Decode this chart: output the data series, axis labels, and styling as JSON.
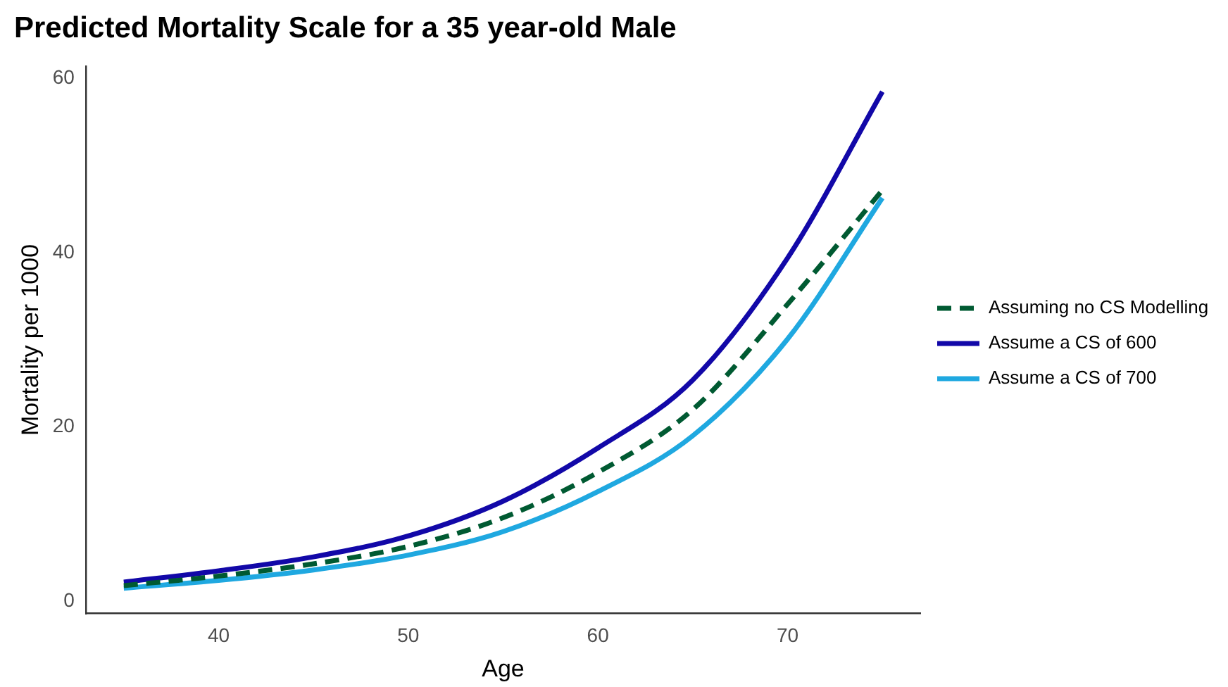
{
  "chart_data": {
    "type": "line",
    "title": "Predicted Mortality Scale for a 35 year-old Male",
    "xlabel": "Age",
    "ylabel": "Mortality per 1000",
    "x": [
      35,
      40,
      45,
      50,
      55,
      60,
      65,
      70,
      75
    ],
    "series": [
      {
        "name": "Assuming no CS Modelling",
        "color": "#005a32",
        "line_style": "dashed",
        "values": [
          1.8,
          2.9,
          4.3,
          6.3,
          9.6,
          14.8,
          22.0,
          34.1,
          47.2
        ]
      },
      {
        "name": "Assume a CS of 600",
        "color": "#1208a8",
        "line_style": "solid",
        "values": [
          2.2,
          3.5,
          5.1,
          7.5,
          11.5,
          17.6,
          25.4,
          39.4,
          58.5
        ]
      },
      {
        "name": "Assume a CS of 700",
        "color": "#1fa8e0",
        "line_style": "solid",
        "values": [
          1.5,
          2.4,
          3.6,
          5.3,
          8.0,
          12.6,
          19.0,
          30.1,
          46.3
        ]
      }
    ],
    "xlim": [
      33,
      77
    ],
    "xticks": [
      40,
      50,
      60,
      70
    ],
    "ylim": [
      -1.4,
      61.4
    ],
    "yticks": [
      0,
      20,
      40,
      60
    ],
    "grid": false,
    "legend": "right",
    "marker": "none"
  }
}
